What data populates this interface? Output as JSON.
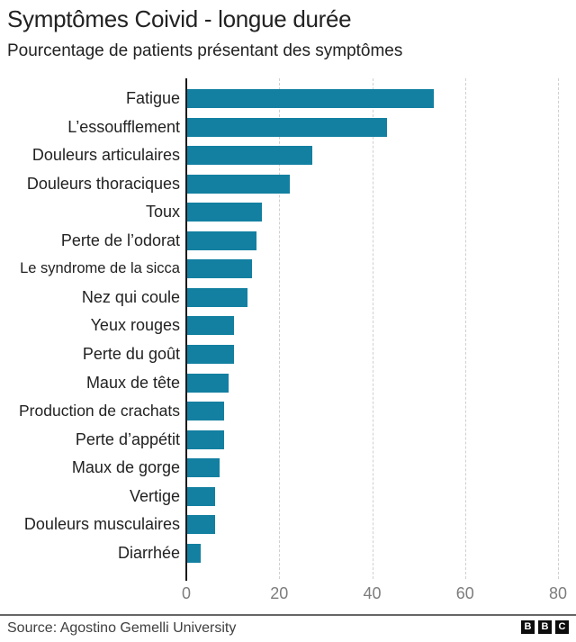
{
  "header": {
    "title": "Symptômes Coivid - longue durée",
    "subtitle": "Pourcentage de patients présentant des symptômes"
  },
  "chart_data": {
    "type": "bar",
    "orientation": "horizontal",
    "title": "Symptômes Coivid - longue durée",
    "subtitle": "Pourcentage de patients présentant des symptômes",
    "xlabel": "",
    "ylabel": "",
    "categories": [
      "Fatigue",
      "L’essoufflement",
      "Douleurs articulaires",
      "Douleurs thoraciques",
      "Toux",
      "Perte de l’odorat",
      "Le syndrome de la sicca",
      "Nez qui coule",
      "Yeux rouges",
      "Perte du goût",
      "Maux de tête",
      "Production de crachats",
      "Perte d’appétit",
      "Maux de gorge",
      "Vertige",
      "Douleurs musculaires",
      "Diarrhée"
    ],
    "values": [
      53,
      43,
      27,
      22,
      16,
      15,
      14,
      13,
      10,
      10,
      9,
      8,
      8,
      7,
      6,
      6,
      3
    ],
    "x_ticks": [
      0,
      20,
      40,
      60,
      80
    ],
    "xlim": [
      0,
      80
    ],
    "grid": "vertical-dashed",
    "legend": "none",
    "bar_color": "#1380A1"
  },
  "colors": {
    "bar": "#1380A1",
    "text_dark": "#222222",
    "tick_gray": "#7d7d7d",
    "gridline": "#d0d0d0",
    "axis_line": "#1a1a1a",
    "source_text": "#404040",
    "logo_block": "#0d0d0d"
  },
  "footer": {
    "source": "Source: Agostino Gemelli University",
    "logo_letters": [
      "B",
      "B",
      "C"
    ]
  }
}
